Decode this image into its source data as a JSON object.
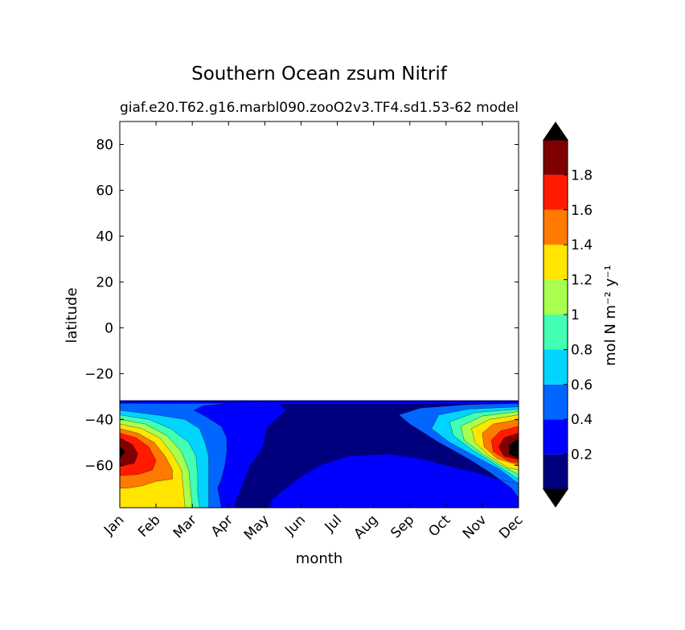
{
  "chart_data": {
    "type": "contourf",
    "title": "Southern Ocean zsum Nitrif",
    "subtitle_left": "giaf.e20.T62.g16.marbl090.zooO2v3.TF4.sd1.53-62",
    "subtitle_right": "model",
    "xlabel": "month",
    "ylabel": "latitude",
    "x_tick_labels": [
      "Jan",
      "Feb",
      "Mar",
      "Apr",
      "May",
      "Jun",
      "Jul",
      "Aug",
      "Sep",
      "Oct",
      "Nov",
      "Dec"
    ],
    "x_range": [
      1,
      12
    ],
    "y_ticks": [
      80,
      60,
      40,
      20,
      0,
      -20,
      -40,
      -60
    ],
    "y_tick_labels": [
      "80",
      "60",
      "40",
      "20",
      "0",
      "−20",
      "−40",
      "−60"
    ],
    "y_range": [
      -78.5,
      90
    ],
    "data_lat_range": [
      -78.5,
      -32
    ],
    "colorbar": {
      "label": "mol N m⁻² y⁻¹",
      "levels": [
        0,
        0.2,
        0.4,
        0.6,
        0.8,
        1.0,
        1.2,
        1.4,
        1.6,
        1.8,
        2.0
      ],
      "tick_values": [
        0.2,
        0.4,
        0.6,
        0.8,
        1.0,
        1.2,
        1.4,
        1.6,
        1.8
      ],
      "tick_labels": [
        "0.2",
        "0.4",
        "0.6",
        "0.8",
        "1",
        "1.2",
        "1.4",
        "1.6",
        "1.8"
      ],
      "colors": [
        "#00007f",
        "#0000ff",
        "#0066ff",
        "#00d4ff",
        "#42ffb4",
        "#a8ff4f",
        "#ffe500",
        "#ff7a00",
        "#ff1a00",
        "#7f0000"
      ],
      "extend": "both",
      "under_color": "#000000",
      "over_color": "#000000"
    },
    "contours": [
      {
        "level": 0.2,
        "segments": [
          [
            [
              4.8,
              -32.2
            ],
            [
              5.4,
              -33
            ],
            [
              5.6,
              -36
            ],
            [
              5.3,
              -40
            ],
            [
              5.05,
              -44
            ],
            [
              5.0,
              -48
            ],
            [
              4.95,
              -52
            ],
            [
              4.8,
              -56
            ],
            [
              4.6,
              -60
            ],
            [
              4.5,
              -64
            ],
            [
              4.4,
              -68
            ],
            [
              4.3,
              -72
            ],
            [
              4.2,
              -76
            ],
            [
              4.15,
              -78.5
            ]
          ],
          [
            [
              5.1,
              -78.5
            ],
            [
              5.2,
              -75
            ],
            [
              5.5,
              -71
            ],
            [
              5.9,
              -66
            ],
            [
              6.5,
              -60
            ],
            [
              7.3,
              -56
            ],
            [
              8.4,
              -55
            ],
            [
              9.3,
              -57
            ],
            [
              10.0,
              -60
            ],
            [
              10.8,
              -63
            ],
            [
              11.4,
              -66
            ],
            [
              12.0,
              -68
            ]
          ]
        ]
      },
      {
        "level": 0.4,
        "segments": [
          [
            [
              1.0,
              -32.6
            ],
            [
              2.0,
              -33
            ],
            [
              3.5,
              -32.8
            ],
            [
              4.7,
              -32.4
            ]
          ],
          [
            [
              3.8,
              -78.5
            ],
            [
              3.75,
              -74
            ],
            [
              3.7,
              -70
            ],
            [
              3.8,
              -66
            ],
            [
              3.9,
              -60
            ],
            [
              3.95,
              -54
            ],
            [
              3.95,
              -48
            ],
            [
              3.8,
              -43
            ],
            [
              3.4,
              -39
            ],
            [
              3.05,
              -36
            ],
            [
              3.3,
              -34
            ],
            [
              4.0,
              -33
            ]
          ],
          [
            [
              12.0,
              -33
            ],
            [
              10.6,
              -33.5
            ],
            [
              9.3,
              -35
            ],
            [
              8.7,
              -38
            ],
            [
              9.0,
              -42
            ],
            [
              9.8,
              -50
            ],
            [
              10.6,
              -57
            ],
            [
              11.2,
              -63
            ],
            [
              11.8,
              -70
            ],
            [
              12.0,
              -74
            ]
          ]
        ]
      },
      {
        "level": 0.6,
        "segments": [
          [
            [
              1.0,
              -36
            ],
            [
              2.0,
              -38
            ],
            [
              2.8,
              -40
            ],
            [
              3.2,
              -44
            ],
            [
              3.35,
              -50
            ],
            [
              3.45,
              -56
            ],
            [
              3.45,
              -64
            ],
            [
              3.45,
              -72
            ],
            [
              3.45,
              -78.5
            ]
          ],
          [
            [
              12.0,
              -34.5
            ],
            [
              10.6,
              -35.5
            ],
            [
              9.8,
              -38
            ],
            [
              9.6,
              -44
            ],
            [
              10.1,
              -50
            ],
            [
              10.8,
              -56
            ],
            [
              11.5,
              -62
            ],
            [
              12.0,
              -68
            ]
          ]
        ]
      },
      {
        "level": 0.8,
        "segments": [
          [
            [
              1.0,
              -38
            ],
            [
              1.8,
              -40
            ],
            [
              2.4,
              -44
            ],
            [
              2.9,
              -50
            ],
            [
              3.1,
              -56
            ],
            [
              3.15,
              -64
            ],
            [
              3.15,
              -72
            ],
            [
              3.2,
              -78.5
            ]
          ],
          [
            [
              12.0,
              -35.5
            ],
            [
              10.8,
              -37
            ],
            [
              10.1,
              -41
            ],
            [
              10.2,
              -47
            ],
            [
              10.7,
              -53
            ],
            [
              11.2,
              -58
            ],
            [
              11.8,
              -64
            ],
            [
              12.0,
              -66
            ]
          ]
        ]
      },
      {
        "level": 1.0,
        "segments": [
          [
            [
              1.0,
              -40
            ],
            [
              1.7,
              -42
            ],
            [
              2.3,
              -47
            ],
            [
              2.7,
              -54
            ],
            [
              2.9,
              -62
            ],
            [
              2.95,
              -70
            ],
            [
              3.0,
              -78.5
            ]
          ],
          [
            [
              12.0,
              -36.5
            ],
            [
              11.0,
              -38.5
            ],
            [
              10.4,
              -43
            ],
            [
              10.5,
              -49
            ],
            [
              11.0,
              -55
            ],
            [
              11.5,
              -60
            ],
            [
              12.0,
              -64
            ]
          ]
        ]
      },
      {
        "level": 1.2,
        "segments": [
          [
            [
              1.0,
              -42
            ],
            [
              1.6,
              -44
            ],
            [
              2.1,
              -48
            ],
            [
              2.45,
              -55
            ],
            [
              2.7,
              -62
            ],
            [
              2.75,
              -70
            ],
            [
              2.8,
              -78.5
            ]
          ],
          [
            [
              12.0,
              -38
            ],
            [
              11.2,
              -40
            ],
            [
              10.7,
              -44
            ],
            [
              10.8,
              -50
            ],
            [
              11.2,
              -56
            ],
            [
              11.7,
              -61
            ],
            [
              12.0,
              -62
            ]
          ]
        ]
      },
      {
        "level": 1.4,
        "segments": [
          [
            [
              1.0,
              -44
            ],
            [
              1.5,
              -46
            ],
            [
              1.95,
              -50
            ],
            [
              2.25,
              -56
            ],
            [
              2.45,
              -62
            ],
            [
              2.45,
              -66
            ],
            [
              2.0,
              -67
            ],
            [
              1.6,
              -69
            ],
            [
              1.2,
              -70
            ],
            [
              1.0,
              -70
            ]
          ],
          [
            [
              12.0,
              -40
            ],
            [
              11.3,
              -42
            ],
            [
              11.0,
              -46
            ],
            [
              11.05,
              -52
            ],
            [
              11.4,
              -57
            ],
            [
              12.0,
              -60
            ]
          ]
        ]
      },
      {
        "level": 1.6,
        "segments": [
          [
            [
              1.0,
              -46
            ],
            [
              1.45,
              -48
            ],
            [
              1.8,
              -52
            ],
            [
              2.0,
              -58
            ],
            [
              1.9,
              -62
            ],
            [
              1.5,
              -64
            ],
            [
              1.0,
              -64.5
            ]
          ],
          [
            [
              12.0,
              -43
            ],
            [
              11.5,
              -45
            ],
            [
              11.25,
              -49
            ],
            [
              11.3,
              -54
            ],
            [
              11.7,
              -58
            ],
            [
              12.0,
              -59
            ]
          ]
        ]
      },
      {
        "level": 1.8,
        "segments": [
          [
            [
              1.0,
              -48
            ],
            [
              1.35,
              -51
            ],
            [
              1.5,
              -55
            ],
            [
              1.4,
              -59
            ],
            [
              1.0,
              -60.5
            ]
          ],
          [
            [
              12.0,
              -46
            ],
            [
              11.6,
              -48
            ],
            [
              11.45,
              -52
            ],
            [
              11.6,
              -56
            ],
            [
              12.0,
              -57.5
            ]
          ]
        ]
      },
      {
        "level": 2.0,
        "segments": [
          [
            [
              1.0,
              -52
            ],
            [
              1.15,
              -54
            ],
            [
              1.0,
              -57
            ]
          ],
          [
            [
              12.0,
              -48.5
            ],
            [
              11.75,
              -51
            ],
            [
              11.75,
              -55
            ],
            [
              12.0,
              -57
            ]
          ]
        ]
      }
    ],
    "field_description_note": ""
  }
}
